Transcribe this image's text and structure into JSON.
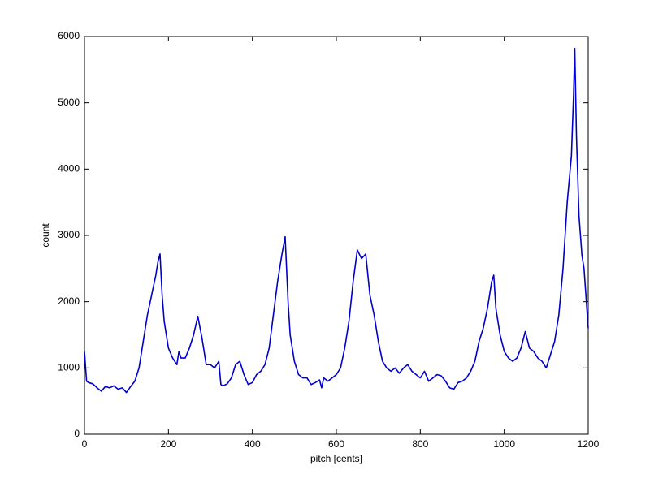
{
  "chart_data": {
    "type": "line",
    "xlabel": "pitch [cents]",
    "ylabel": "count",
    "x": [
      0,
      5,
      10,
      20,
      30,
      40,
      50,
      60,
      70,
      80,
      90,
      100,
      110,
      120,
      130,
      140,
      150,
      160,
      170,
      175,
      180,
      185,
      190,
      200,
      210,
      220,
      225,
      230,
      240,
      250,
      260,
      270,
      280,
      290,
      300,
      310,
      320,
      325,
      330,
      340,
      350,
      360,
      370,
      380,
      390,
      400,
      410,
      420,
      430,
      440,
      450,
      460,
      470,
      478,
      485,
      490,
      500,
      510,
      520,
      530,
      540,
      550,
      560,
      565,
      570,
      580,
      590,
      600,
      610,
      620,
      630,
      640,
      650,
      660,
      670,
      680,
      690,
      700,
      710,
      720,
      730,
      740,
      750,
      760,
      770,
      780,
      790,
      800,
      810,
      820,
      830,
      840,
      850,
      860,
      870,
      880,
      890,
      900,
      910,
      920,
      930,
      940,
      950,
      960,
      970,
      975,
      980,
      990,
      1000,
      1010,
      1020,
      1030,
      1040,
      1050,
      1060,
      1070,
      1080,
      1090,
      1100,
      1110,
      1120,
      1130,
      1140,
      1150,
      1160,
      1165,
      1168,
      1172,
      1178,
      1185,
      1190,
      1200
    ],
    "series": [
      {
        "color": "#0000cc",
        "values": [
          1250,
          800,
          780,
          760,
          700,
          650,
          720,
          700,
          730,
          680,
          700,
          630,
          720,
          800,
          1000,
          1400,
          1800,
          2100,
          2400,
          2600,
          2720,
          2100,
          1700,
          1300,
          1150,
          1050,
          1250,
          1150,
          1150,
          1300,
          1500,
          1780,
          1450,
          1050,
          1050,
          1000,
          1100,
          750,
          730,
          760,
          850,
          1050,
          1100,
          900,
          750,
          780,
          900,
          950,
          1050,
          1300,
          1800,
          2300,
          2700,
          2980,
          2000,
          1500,
          1100,
          900,
          850,
          850,
          750,
          780,
          820,
          700,
          850,
          800,
          850,
          900,
          1000,
          1300,
          1700,
          2300,
          2780,
          2650,
          2720,
          2100,
          1800,
          1400,
          1100,
          1000,
          950,
          1000,
          920,
          1000,
          1050,
          950,
          900,
          850,
          950,
          800,
          850,
          900,
          880,
          800,
          700,
          680,
          780,
          800,
          850,
          950,
          1100,
          1400,
          1600,
          1900,
          2300,
          2400,
          1900,
          1500,
          1250,
          1150,
          1100,
          1150,
          1300,
          1550,
          1300,
          1250,
          1150,
          1100,
          1000,
          1200,
          1400,
          1800,
          2500,
          3500,
          4200,
          5100,
          5820,
          4500,
          3300,
          2700,
          2500,
          1600
        ]
      }
    ],
    "xlim": [
      0,
      1200
    ],
    "ylim": [
      0,
      6000
    ],
    "xticks": [
      0,
      200,
      400,
      600,
      800,
      1000,
      1200
    ],
    "yticks": [
      0,
      1000,
      2000,
      3000,
      4000,
      5000,
      6000
    ]
  }
}
